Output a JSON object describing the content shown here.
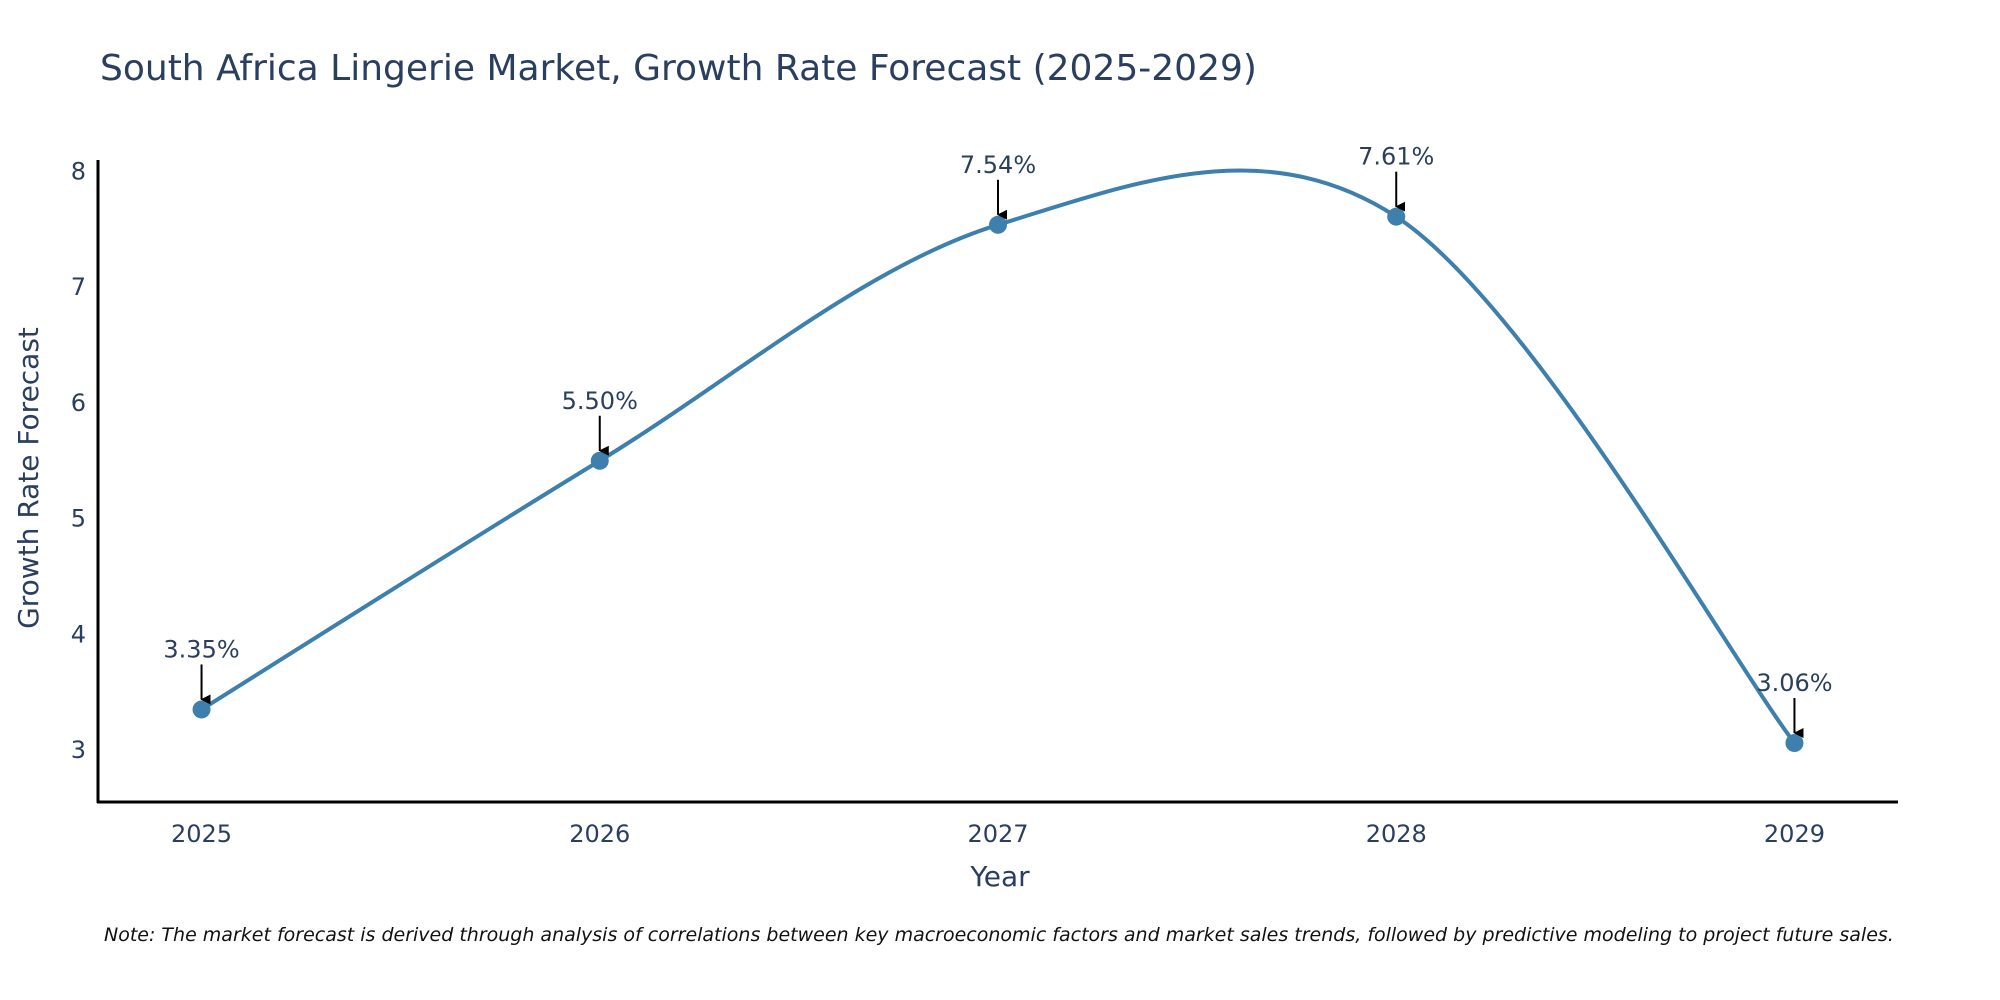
{
  "chart_data": {
    "type": "line",
    "title": "South Africa Lingerie Market, Growth Rate Forecast (2025-2029)",
    "xlabel": "Year",
    "ylabel": "Growth Rate Forecast",
    "categories": [
      "2025",
      "2026",
      "2027",
      "2028",
      "2029"
    ],
    "x": [
      2025,
      2026,
      2027,
      2028,
      2029
    ],
    "series": [
      {
        "name": "Growth Rate Forecast",
        "values": [
          3.35,
          5.5,
          7.54,
          7.61,
          3.06
        ],
        "labels": [
          "3.35%",
          "5.50%",
          "7.54%",
          "7.61%",
          "3.06%"
        ],
        "color": "#3d7fad"
      }
    ],
    "yticks": [
      3,
      4,
      5,
      6,
      7,
      8
    ],
    "ylim": [
      2.55,
      8.1
    ],
    "xlim": [
      2024.74,
      2029.26
    ],
    "grid": false,
    "line_shape": "spline",
    "note": "Note: The market forecast is derived through analysis of correlations between key macroeconomic factors and market sales trends, followed by predictive modeling to project future sales."
  },
  "colors": {
    "line": "#3d7fad",
    "marker": "#3d7fad",
    "axis": "#000000",
    "text": "#2a3f5f",
    "arrow": "#000000"
  }
}
